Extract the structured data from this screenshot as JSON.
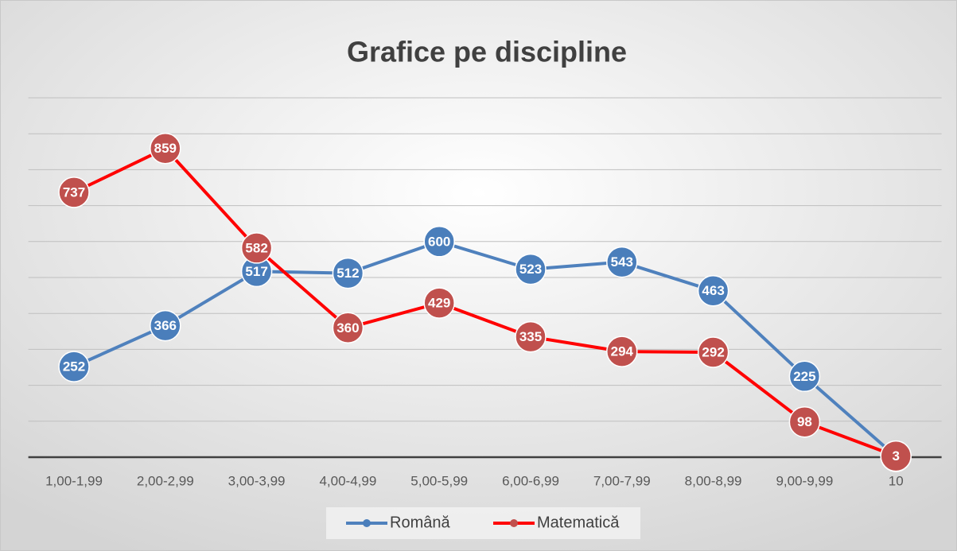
{
  "chart_data": {
    "type": "line",
    "title": "Grafice pe discipline",
    "categories": [
      "1,00-1,99",
      "2,00-2,99",
      "3,00-3,99",
      "4,00-4,99",
      "5,00-5,99",
      "6,00-6,99",
      "7,00-7,99",
      "8,00-8,99",
      "9,00-9,99",
      "10"
    ],
    "series": [
      {
        "name": "Română",
        "color": "#4f81bd",
        "values": [
          252,
          366,
          517,
          512,
          600,
          523,
          543,
          463,
          225,
          2
        ]
      },
      {
        "name": "Matematică",
        "color": "#ff0000",
        "values": [
          737,
          859,
          582,
          360,
          429,
          335,
          294,
          292,
          98,
          3
        ]
      }
    ],
    "ylim": [
      0,
      1000
    ],
    "yticks": [
      0,
      100,
      200,
      300,
      400,
      500,
      600,
      700,
      800,
      900,
      1000
    ],
    "grid": true,
    "legend": "bottom"
  }
}
